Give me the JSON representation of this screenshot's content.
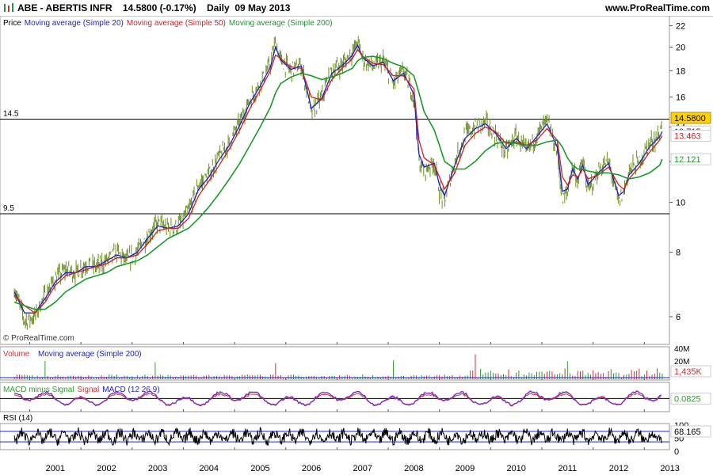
{
  "header": {
    "symbol": "ABE - ABERTIS INFR",
    "price": "14.5800 (-0.17%)",
    "period": "Daily  09 May 2013",
    "website": "www.ProRealTime.com"
  },
  "colors": {
    "price": "#6b8e23",
    "ma20": "#1e22cc",
    "ma50": "#d21f1f",
    "ma200": "#1a9a2a",
    "volume": "#cc3333",
    "macd_hist": "#2ca02c",
    "macd_line": "#7b2fbf",
    "rsi": "#000000"
  },
  "chart_data": [
    {
      "type": "line",
      "panel": "price",
      "title": "ABE - ABERTIS INFR",
      "legend": [
        "Price",
        "Moving average (Simple 20)",
        "Moving average (Simple 50)",
        "Moving average (Simple 200)"
      ],
      "y_scale": "log",
      "ylim": [
        5.3,
        23
      ],
      "y_ticks": [
        6,
        8,
        10,
        12,
        14,
        16,
        18,
        20,
        22
      ],
      "x_ticks": [
        "2001",
        "2002",
        "2003",
        "2004",
        "2005",
        "2006",
        "2007",
        "2008",
        "2009",
        "2010",
        "2011",
        "2012",
        "2013"
      ],
      "hlines": [
        {
          "value": 14.5,
          "label": "14.5"
        },
        {
          "value": 9.5,
          "label": "9.5"
        }
      ],
      "value_labels": {
        "price": "14.5800",
        "ma20": "13.715",
        "ma50": "13.463",
        "ma200": "12.121"
      },
      "watermark": "© ProRealTime.com",
      "x": [
        2000.7,
        2000.9,
        2001.1,
        2001.3,
        2001.5,
        2001.7,
        2001.9,
        2002.1,
        2002.3,
        2002.5,
        2002.7,
        2002.9,
        2003.1,
        2003.3,
        2003.5,
        2003.7,
        2003.9,
        2004.1,
        2004.3,
        2004.5,
        2004.7,
        2004.9,
        2005.1,
        2005.3,
        2005.5,
        2005.7,
        2005.8,
        2005.9,
        2006.1,
        2006.3,
        2006.5,
        2006.7,
        2006.9,
        2007.1,
        2007.3,
        2007.4,
        2007.5,
        2007.7,
        2007.9,
        2008.1,
        2008.3,
        2008.5,
        2008.6,
        2008.7,
        2008.9,
        2009.0,
        2009.1,
        2009.3,
        2009.5,
        2009.7,
        2009.9,
        2010.1,
        2010.3,
        2010.5,
        2010.7,
        2010.9,
        2011.1,
        2011.3,
        2011.4,
        2011.5,
        2011.6,
        2011.7,
        2011.8,
        2011.9,
        2012.1,
        2012.3,
        2012.5,
        2012.6,
        2012.7,
        2012.9,
        2013.1,
        2013.3,
        2013.35
      ],
      "series": [
        {
          "name": "Price",
          "values": [
            6.8,
            5.9,
            6.0,
            6.6,
            7.1,
            7.4,
            7.3,
            7.6,
            7.5,
            7.7,
            8.0,
            7.7,
            8.0,
            8.6,
            9.1,
            8.9,
            9.0,
            9.6,
            10.8,
            11.3,
            12.3,
            13.0,
            14.3,
            15.8,
            17.0,
            18.5,
            20.5,
            18.8,
            18.0,
            18.5,
            14.8,
            16.0,
            18.0,
            18.5,
            19.5,
            20.5,
            19.0,
            18.3,
            18.8,
            17.0,
            18.0,
            16.0,
            12.0,
            11.5,
            12.0,
            10.5,
            10.0,
            12.0,
            13.5,
            14.0,
            14.3,
            13.5,
            12.5,
            13.5,
            12.5,
            13.5,
            14.4,
            12.5,
            10.0,
            10.5,
            11.8,
            11.0,
            12.0,
            10.5,
            11.5,
            12.0,
            10.0,
            10.5,
            11.5,
            12.0,
            13.0,
            13.5,
            14.58
          ]
        },
        {
          "name": "Moving average (Simple 20)",
          "values": [
            6.7,
            6.1,
            6.1,
            6.5,
            7.0,
            7.3,
            7.3,
            7.5,
            7.5,
            7.7,
            7.9,
            7.8,
            8.0,
            8.5,
            9.0,
            8.9,
            9.0,
            9.5,
            10.6,
            11.2,
            12.1,
            12.9,
            14.1,
            15.6,
            16.8,
            18.3,
            20.0,
            18.9,
            18.1,
            18.4,
            15.2,
            15.9,
            17.8,
            18.4,
            19.3,
            20.2,
            19.1,
            18.4,
            18.7,
            17.2,
            17.8,
            16.2,
            12.4,
            11.7,
            11.9,
            10.8,
            10.3,
            11.8,
            13.3,
            13.9,
            14.2,
            13.6,
            12.7,
            13.3,
            12.7,
            13.4,
            14.2,
            12.8,
            10.5,
            10.6,
            11.6,
            11.1,
            11.8,
            10.8,
            11.4,
            11.9,
            10.3,
            10.5,
            11.3,
            11.9,
            12.8,
            13.4,
            13.715
          ]
        },
        {
          "name": "Moving average (Simple 50)",
          "values": [
            6.6,
            6.3,
            6.1,
            6.4,
            6.9,
            7.2,
            7.3,
            7.4,
            7.5,
            7.6,
            7.8,
            7.8,
            7.9,
            8.3,
            8.8,
            8.9,
            8.9,
            9.3,
            10.3,
            11.0,
            11.8,
            12.7,
            13.8,
            15.2,
            16.5,
            18.0,
            19.3,
            19.0,
            18.3,
            18.2,
            16.0,
            15.8,
            17.3,
            18.2,
            19.0,
            19.8,
            19.2,
            18.6,
            18.5,
            17.6,
            17.6,
            16.6,
            13.2,
            12.2,
            11.8,
            11.2,
            10.6,
            11.4,
            12.9,
            13.6,
            14.0,
            13.7,
            13.0,
            13.1,
            12.9,
            13.2,
            13.9,
            13.2,
            11.2,
            10.8,
            11.3,
            11.2,
            11.6,
            11.1,
            11.3,
            11.7,
            10.8,
            10.6,
            11.1,
            11.7,
            12.5,
            13.2,
            13.463
          ]
        },
        {
          "name": "Moving average (Simple 200)",
          "values": [
            6.4,
            6.3,
            6.2,
            6.2,
            6.4,
            6.7,
            6.9,
            7.1,
            7.2,
            7.3,
            7.5,
            7.6,
            7.7,
            7.9,
            8.2,
            8.5,
            8.7,
            8.9,
            9.3,
            9.8,
            10.4,
            11.1,
            11.9,
            12.9,
            14.0,
            15.3,
            16.3,
            17.0,
            17.5,
            17.8,
            17.6,
            17.3,
            17.5,
            17.8,
            18.2,
            18.8,
            19.1,
            19.2,
            19.0,
            18.6,
            18.3,
            17.6,
            16.3,
            15.0,
            13.8,
            12.9,
            12.0,
            11.6,
            11.6,
            12.0,
            12.6,
            13.0,
            13.1,
            13.0,
            12.9,
            12.9,
            13.1,
            13.2,
            12.8,
            12.2,
            11.8,
            11.6,
            11.6,
            11.5,
            11.4,
            11.4,
            11.3,
            11.2,
            11.1,
            11.2,
            11.4,
            11.8,
            12.121
          ]
        }
      ]
    },
    {
      "type": "bar",
      "panel": "volume",
      "legend": [
        "Volume",
        "Moving average (Simple 200)"
      ],
      "y_ticks": [
        "40M",
        "20M"
      ],
      "last_value": "1,435K"
    },
    {
      "type": "line",
      "panel": "macd",
      "legend": [
        "MACD minus Signal",
        "Signal",
        "MACD (12 26 9)"
      ],
      "last_value": "0.0825"
    },
    {
      "type": "line",
      "panel": "rsi",
      "legend": [
        "RSI (14)"
      ],
      "y_ticks": [
        100,
        50,
        0
      ],
      "last_value": "68.165"
    }
  ]
}
